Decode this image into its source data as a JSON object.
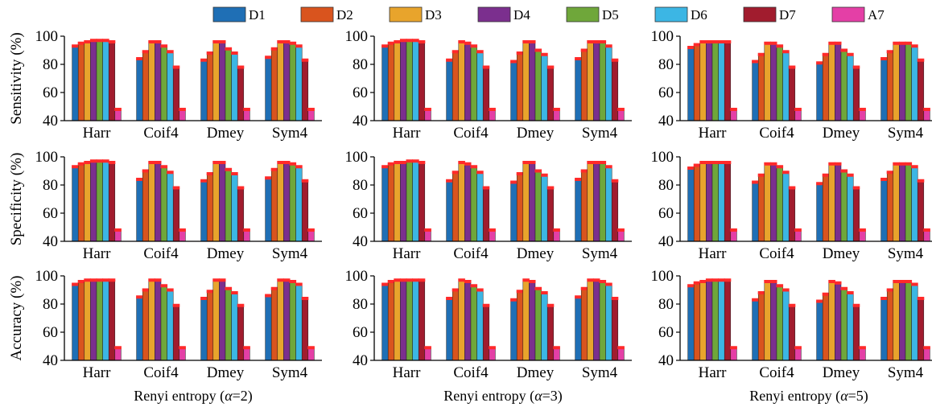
{
  "colors": {
    "series": [
      "#1f6fb5",
      "#d9541e",
      "#e8a42c",
      "#7b2f8e",
      "#6fa73a",
      "#3cb6e4",
      "#a11c2e",
      "#e43fa6"
    ],
    "error_cap": "#ff2a2a"
  },
  "legend": [
    "D1",
    "D2",
    "D3",
    "D4",
    "D5",
    "D6",
    "D7",
    "A7"
  ],
  "chart_data": [
    {
      "type": "bar",
      "row": 0,
      "col": 0,
      "ylabel": "Sensitivity (%)",
      "xlabel": "",
      "ylim": [
        40,
        100
      ],
      "yticks": [
        40,
        60,
        80,
        100
      ],
      "categories": [
        "Harr",
        "Coif4",
        "Dmey",
        "Sym4"
      ],
      "series": [
        {
          "name": "D1",
          "values": [
            93,
            84,
            83,
            85
          ]
        },
        {
          "name": "D2",
          "values": [
            95,
            89,
            88,
            91
          ]
        },
        {
          "name": "D3",
          "values": [
            96,
            96,
            96,
            96
          ]
        },
        {
          "name": "D4",
          "values": [
            97,
            96,
            96,
            96
          ]
        },
        {
          "name": "D5",
          "values": [
            97,
            93,
            91,
            95
          ]
        },
        {
          "name": "D6",
          "values": [
            97,
            89,
            88,
            93
          ]
        },
        {
          "name": "D7",
          "values": [
            96,
            78,
            78,
            83
          ]
        },
        {
          "name": "A7",
          "values": [
            48,
            48,
            48,
            48
          ]
        }
      ]
    },
    {
      "type": "bar",
      "row": 0,
      "col": 1,
      "ylabel": "",
      "xlabel": "",
      "ylim": [
        40,
        100
      ],
      "yticks": [
        40,
        60,
        80,
        100
      ],
      "categories": [
        "Harr",
        "Coif4",
        "Dmey",
        "Sym4"
      ],
      "series": [
        {
          "name": "D1",
          "values": [
            93,
            83,
            82,
            84
          ]
        },
        {
          "name": "D2",
          "values": [
            95,
            89,
            88,
            90
          ]
        },
        {
          "name": "D3",
          "values": [
            96,
            96,
            96,
            96
          ]
        },
        {
          "name": "D4",
          "values": [
            97,
            95,
            96,
            96
          ]
        },
        {
          "name": "D5",
          "values": [
            97,
            93,
            90,
            96
          ]
        },
        {
          "name": "D6",
          "values": [
            97,
            89,
            87,
            93
          ]
        },
        {
          "name": "D7",
          "values": [
            96,
            78,
            78,
            83
          ]
        },
        {
          "name": "A7",
          "values": [
            48,
            48,
            48,
            48
          ]
        }
      ]
    },
    {
      "type": "bar",
      "row": 0,
      "col": 2,
      "ylabel": "",
      "xlabel": "",
      "ylim": [
        40,
        100
      ],
      "yticks": [
        40,
        60,
        80,
        100
      ],
      "categories": [
        "Harr",
        "Coif4",
        "Dmey",
        "Sym4"
      ],
      "series": [
        {
          "name": "D1",
          "values": [
            92,
            82,
            81,
            84
          ]
        },
        {
          "name": "D2",
          "values": [
            94,
            87,
            87,
            89
          ]
        },
        {
          "name": "D3",
          "values": [
            96,
            95,
            95,
            95
          ]
        },
        {
          "name": "D4",
          "values": [
            96,
            95,
            95,
            95
          ]
        },
        {
          "name": "D5",
          "values": [
            96,
            93,
            90,
            95
          ]
        },
        {
          "name": "D6",
          "values": [
            96,
            89,
            87,
            93
          ]
        },
        {
          "name": "D7",
          "values": [
            96,
            78,
            78,
            83
          ]
        },
        {
          "name": "A7",
          "values": [
            48,
            48,
            48,
            48
          ]
        }
      ]
    },
    {
      "type": "bar",
      "row": 1,
      "col": 0,
      "ylabel": "Specificity (%)",
      "xlabel": "",
      "ylim": [
        40,
        100
      ],
      "yticks": [
        40,
        60,
        80,
        100
      ],
      "categories": [
        "Harr",
        "Coif4",
        "Dmey",
        "Sym4"
      ],
      "series": [
        {
          "name": "D1",
          "values": [
            93,
            84,
            83,
            85
          ]
        },
        {
          "name": "D2",
          "values": [
            95,
            90,
            88,
            91
          ]
        },
        {
          "name": "D3",
          "values": [
            96,
            96,
            96,
            96
          ]
        },
        {
          "name": "D4",
          "values": [
            97,
            96,
            96,
            96
          ]
        },
        {
          "name": "D5",
          "values": [
            97,
            93,
            91,
            95
          ]
        },
        {
          "name": "D6",
          "values": [
            97,
            89,
            88,
            93
          ]
        },
        {
          "name": "D7",
          "values": [
            96,
            78,
            78,
            83
          ]
        },
        {
          "name": "A7",
          "values": [
            48,
            48,
            48,
            48
          ]
        }
      ]
    },
    {
      "type": "bar",
      "row": 1,
      "col": 1,
      "ylabel": "",
      "xlabel": "",
      "ylim": [
        40,
        100
      ],
      "yticks": [
        40,
        60,
        80,
        100
      ],
      "categories": [
        "Harr",
        "Coif4",
        "Dmey",
        "Sym4"
      ],
      "series": [
        {
          "name": "D1",
          "values": [
            93,
            83,
            82,
            84
          ]
        },
        {
          "name": "D2",
          "values": [
            95,
            89,
            88,
            90
          ]
        },
        {
          "name": "D3",
          "values": [
            96,
            96,
            96,
            96
          ]
        },
        {
          "name": "D4",
          "values": [
            96,
            95,
            96,
            96
          ]
        },
        {
          "name": "D5",
          "values": [
            97,
            93,
            90,
            96
          ]
        },
        {
          "name": "D6",
          "values": [
            97,
            89,
            87,
            93
          ]
        },
        {
          "name": "D7",
          "values": [
            96,
            78,
            78,
            83
          ]
        },
        {
          "name": "A7",
          "values": [
            48,
            48,
            48,
            48
          ]
        }
      ]
    },
    {
      "type": "bar",
      "row": 1,
      "col": 2,
      "ylabel": "",
      "xlabel": "",
      "ylim": [
        40,
        100
      ],
      "yticks": [
        40,
        60,
        80,
        100
      ],
      "categories": [
        "Harr",
        "Coif4",
        "Dmey",
        "Sym4"
      ],
      "series": [
        {
          "name": "D1",
          "values": [
            92,
            82,
            81,
            84
          ]
        },
        {
          "name": "D2",
          "values": [
            94,
            87,
            87,
            89
          ]
        },
        {
          "name": "D3",
          "values": [
            96,
            95,
            95,
            95
          ]
        },
        {
          "name": "D4",
          "values": [
            96,
            95,
            95,
            95
          ]
        },
        {
          "name": "D5",
          "values": [
            96,
            93,
            90,
            95
          ]
        },
        {
          "name": "D6",
          "values": [
            96,
            89,
            87,
            93
          ]
        },
        {
          "name": "D7",
          "values": [
            96,
            78,
            78,
            83
          ]
        },
        {
          "name": "A7",
          "values": [
            48,
            48,
            48,
            48
          ]
        }
      ]
    },
    {
      "type": "bar",
      "row": 2,
      "col": 0,
      "ylabel": "Accuracy (%)",
      "xlabel": "Renyi entropy (α=2)",
      "ylim": [
        40,
        100
      ],
      "yticks": [
        40,
        60,
        80,
        100
      ],
      "categories": [
        "Harr",
        "Coif4",
        "Dmey",
        "Sym4"
      ],
      "series": [
        {
          "name": "D1",
          "values": [
            94,
            85,
            84,
            86
          ]
        },
        {
          "name": "D2",
          "values": [
            96,
            90,
            89,
            91
          ]
        },
        {
          "name": "D3",
          "values": [
            97,
            97,
            97,
            97
          ]
        },
        {
          "name": "D4",
          "values": [
            97,
            97,
            97,
            97
          ]
        },
        {
          "name": "D5",
          "values": [
            97,
            93,
            91,
            96
          ]
        },
        {
          "name": "D6",
          "values": [
            97,
            90,
            88,
            94
          ]
        },
        {
          "name": "D7",
          "values": [
            97,
            79,
            79,
            84
          ]
        },
        {
          "name": "A7",
          "values": [
            49,
            49,
            49,
            49
          ]
        }
      ]
    },
    {
      "type": "bar",
      "row": 2,
      "col": 1,
      "ylabel": "",
      "xlabel": "Renyi entropy (α=3)",
      "ylim": [
        40,
        100
      ],
      "yticks": [
        40,
        60,
        80,
        100
      ],
      "categories": [
        "Harr",
        "Coif4",
        "Dmey",
        "Sym4"
      ],
      "series": [
        {
          "name": "D1",
          "values": [
            94,
            84,
            83,
            85
          ]
        },
        {
          "name": "D2",
          "values": [
            96,
            90,
            89,
            91
          ]
        },
        {
          "name": "D3",
          "values": [
            97,
            97,
            97,
            97
          ]
        },
        {
          "name": "D4",
          "values": [
            97,
            96,
            96,
            97
          ]
        },
        {
          "name": "D5",
          "values": [
            97,
            93,
            91,
            96
          ]
        },
        {
          "name": "D6",
          "values": [
            97,
            90,
            88,
            94
          ]
        },
        {
          "name": "D7",
          "values": [
            97,
            79,
            79,
            84
          ]
        },
        {
          "name": "A7",
          "values": [
            49,
            49,
            49,
            49
          ]
        }
      ]
    },
    {
      "type": "bar",
      "row": 2,
      "col": 2,
      "ylabel": "",
      "xlabel": "Renyi entropy (α=5)",
      "ylim": [
        40,
        100
      ],
      "yticks": [
        40,
        60,
        80,
        100
      ],
      "categories": [
        "Harr",
        "Coif4",
        "Dmey",
        "Sym4"
      ],
      "series": [
        {
          "name": "D1",
          "values": [
            93,
            83,
            82,
            84
          ]
        },
        {
          "name": "D2",
          "values": [
            95,
            88,
            87,
            90
          ]
        },
        {
          "name": "D3",
          "values": [
            96,
            96,
            96,
            96
          ]
        },
        {
          "name": "D4",
          "values": [
            97,
            96,
            95,
            96
          ]
        },
        {
          "name": "D5",
          "values": [
            97,
            93,
            91,
            96
          ]
        },
        {
          "name": "D6",
          "values": [
            97,
            90,
            88,
            94
          ]
        },
        {
          "name": "D7",
          "values": [
            97,
            79,
            79,
            84
          ]
        },
        {
          "name": "A7",
          "values": [
            49,
            49,
            49,
            49
          ]
        }
      ]
    }
  ]
}
